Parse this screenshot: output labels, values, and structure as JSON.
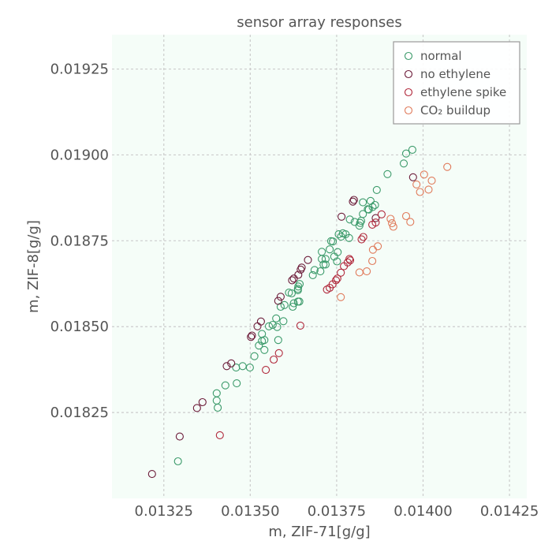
{
  "chart_data": {
    "type": "scatter",
    "title": "sensor array responses",
    "xlabel": "m, ZIF-71[g/g]",
    "ylabel": "m, ZIF-8[g/g]",
    "xlim": [
      0.0131,
      0.0143
    ],
    "ylim": [
      0.018,
      0.01935
    ],
    "xticks": [
      "0.01325",
      "0.01350",
      "0.01375",
      "0.01400",
      "0.01425"
    ],
    "yticks": [
      "0.01825",
      "0.01850",
      "0.01875",
      "0.01900",
      "0.01925"
    ],
    "grid": true,
    "legend_position": "top-right",
    "background": "#f5fdf8",
    "series": [
      {
        "name": "normal",
        "color": "#3b9a6a",
        "points": [
          [
            0.013291,
            0.018108
          ],
          [
            0.013406,
            0.018264
          ],
          [
            0.013403,
            0.018285
          ],
          [
            0.013403,
            0.018306
          ],
          [
            0.013428,
            0.018329
          ],
          [
            0.013461,
            0.018335
          ],
          [
            0.013459,
            0.018381
          ],
          [
            0.013478,
            0.018385
          ],
          [
            0.013499,
            0.018381
          ],
          [
            0.013512,
            0.018414
          ],
          [
            0.013525,
            0.018445
          ],
          [
            0.013534,
            0.018458
          ],
          [
            0.013541,
            0.018432
          ],
          [
            0.013541,
            0.018461
          ],
          [
            0.013534,
            0.018479
          ],
          [
            0.013554,
            0.018501
          ],
          [
            0.013565,
            0.018505
          ],
          [
            0.013578,
            0.018499
          ],
          [
            0.013581,
            0.018461
          ],
          [
            0.013596,
            0.018516
          ],
          [
            0.013623,
            0.018558
          ],
          [
            0.013626,
            0.018568
          ],
          [
            0.01362,
            0.018597
          ],
          [
            0.013638,
            0.018573
          ],
          [
            0.013638,
            0.018606
          ],
          [
            0.013638,
            0.01861
          ],
          [
            0.013639,
            0.018617
          ],
          [
            0.013643,
            0.018624
          ],
          [
            0.013599,
            0.018563
          ],
          [
            0.013575,
            0.018524
          ],
          [
            0.013588,
            0.018558
          ],
          [
            0.013612,
            0.018599
          ],
          [
            0.013642,
            0.018573
          ],
          [
            0.013681,
            0.01865
          ],
          [
            0.013686,
            0.018665
          ],
          [
            0.013703,
            0.018661
          ],
          [
            0.013707,
            0.018697
          ],
          [
            0.013712,
            0.018681
          ],
          [
            0.013707,
            0.018718
          ],
          [
            0.013718,
            0.018681
          ],
          [
            0.013718,
            0.018697
          ],
          [
            0.01373,
            0.018725
          ],
          [
            0.013734,
            0.018749
          ],
          [
            0.013739,
            0.018748
          ],
          [
            0.013743,
            0.018704
          ],
          [
            0.013751,
            0.01869
          ],
          [
            0.013753,
            0.018717
          ],
          [
            0.013763,
            0.018762
          ],
          [
            0.013776,
            0.018769
          ],
          [
            0.013786,
            0.018758
          ],
          [
            0.013756,
            0.018769
          ],
          [
            0.013788,
            0.018812
          ],
          [
            0.013802,
            0.018805
          ],
          [
            0.013816,
            0.018794
          ],
          [
            0.013818,
            0.018802
          ],
          [
            0.013821,
            0.018808
          ],
          [
            0.013826,
            0.018828
          ],
          [
            0.013826,
            0.018862
          ],
          [
            0.01384,
            0.018842
          ],
          [
            0.013854,
            0.018848
          ],
          [
            0.013861,
            0.018854
          ],
          [
            0.013843,
            0.018841
          ],
          [
            0.013848,
            0.018866
          ],
          [
            0.013866,
            0.018898
          ],
          [
            0.013897,
            0.018944
          ],
          [
            0.013944,
            0.018975
          ],
          [
            0.013951,
            0.019004
          ],
          [
            0.013969,
            0.019015
          ],
          [
            0.013768,
            0.018772
          ]
        ]
      },
      {
        "name": "no ethylene",
        "color": "#6b1a38",
        "points": [
          [
            0.013216,
            0.018071
          ],
          [
            0.013296,
            0.01818
          ],
          [
            0.013346,
            0.018263
          ],
          [
            0.013362,
            0.01828
          ],
          [
            0.013432,
            0.018385
          ],
          [
            0.013445,
            0.018393
          ],
          [
            0.013502,
            0.01847
          ],
          [
            0.013505,
            0.018474
          ],
          [
            0.013521,
            0.018501
          ],
          [
            0.013531,
            0.018515
          ],
          [
            0.013581,
            0.018575
          ],
          [
            0.013588,
            0.018587
          ],
          [
            0.013621,
            0.018635
          ],
          [
            0.013626,
            0.01864
          ],
          [
            0.013639,
            0.018651
          ],
          [
            0.013646,
            0.018666
          ],
          [
            0.013649,
            0.018672
          ],
          [
            0.013667,
            0.018694
          ],
          [
            0.013764,
            0.01882
          ],
          [
            0.013797,
            0.018864
          ],
          [
            0.0138,
            0.018869
          ],
          [
            0.013863,
            0.018816
          ],
          [
            0.013971,
            0.018935
          ]
        ]
      },
      {
        "name": "ethylene spike",
        "color": "#b0273a",
        "points": [
          [
            0.013412,
            0.018184
          ],
          [
            0.013545,
            0.018374
          ],
          [
            0.013568,
            0.018404
          ],
          [
            0.013583,
            0.018423
          ],
          [
            0.013645,
            0.018503
          ],
          [
            0.013722,
            0.018608
          ],
          [
            0.01373,
            0.018613
          ],
          [
            0.013738,
            0.018623
          ],
          [
            0.013748,
            0.018635
          ],
          [
            0.013752,
            0.01864
          ],
          [
            0.013762,
            0.018657
          ],
          [
            0.013771,
            0.018676
          ],
          [
            0.013782,
            0.018687
          ],
          [
            0.013787,
            0.018697
          ],
          [
            0.013789,
            0.018693
          ],
          [
            0.013822,
            0.018754
          ],
          [
            0.013827,
            0.018761
          ],
          [
            0.013853,
            0.018797
          ],
          [
            0.013863,
            0.018803
          ],
          [
            0.01388,
            0.018827
          ]
        ]
      },
      {
        "name": "CO₂ buildup",
        "color": "#e07a5a",
        "points": [
          [
            0.013762,
            0.018586
          ],
          [
            0.013816,
            0.018658
          ],
          [
            0.013837,
            0.018661
          ],
          [
            0.013853,
            0.018691
          ],
          [
            0.013855,
            0.018724
          ],
          [
            0.013869,
            0.018734
          ],
          [
            0.013906,
            0.018814
          ],
          [
            0.01391,
            0.018801
          ],
          [
            0.013914,
            0.018791
          ],
          [
            0.013951,
            0.018822
          ],
          [
            0.013963,
            0.018805
          ],
          [
            0.013981,
            0.018914
          ],
          [
            0.013991,
            0.018892
          ],
          [
            0.014003,
            0.018943
          ],
          [
            0.014016,
            0.018899
          ],
          [
            0.014025,
            0.018925
          ],
          [
            0.01407,
            0.018965
          ]
        ]
      }
    ]
  }
}
